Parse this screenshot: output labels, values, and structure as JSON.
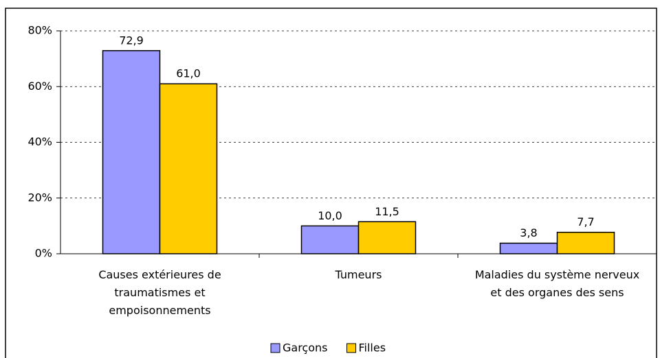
{
  "chart_data": {
    "type": "bar",
    "categories": [
      "Causes extérieures de traumatismes et empoisonnements",
      "Tumeurs",
      "Maladies du système nerveux et des organes des sens"
    ],
    "series": [
      {
        "name": "Garçons",
        "color": "#9999ff",
        "values": [
          72.9,
          10.0,
          3.8
        ],
        "value_labels": [
          "72,9",
          "10,0",
          "3,8"
        ]
      },
      {
        "name": "Filles",
        "color": "#ffcc00",
        "values": [
          61.0,
          11.5,
          7.7
        ],
        "value_labels": [
          "61,0",
          "11,5",
          "7,7"
        ]
      }
    ],
    "ylim": [
      0,
      80
    ],
    "yticks": [
      {
        "value": 0,
        "label": "0%"
      },
      {
        "value": 20,
        "label": "20%"
      },
      {
        "value": 40,
        "label": "40%"
      },
      {
        "value": 60,
        "label": "60%"
      },
      {
        "value": 80,
        "label": "80%"
      }
    ],
    "grid": true,
    "legend": "bottom"
  }
}
